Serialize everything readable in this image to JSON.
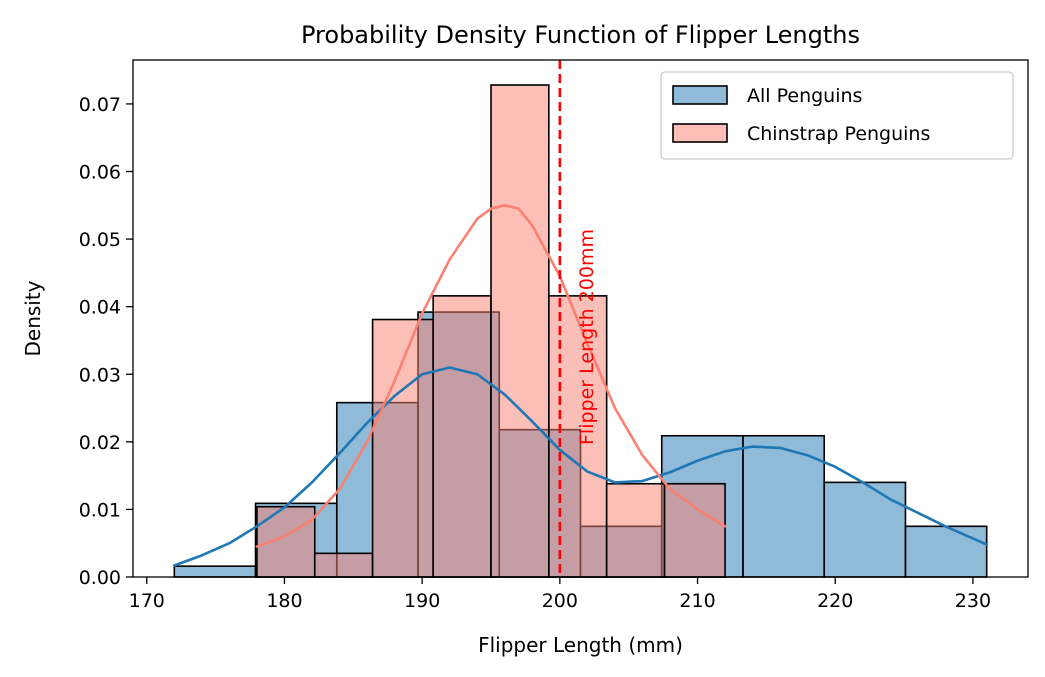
{
  "chart_data": {
    "type": "histogram",
    "title": "Probability Density Function of Flipper Lengths",
    "xlabel": "Flipper Length (mm)",
    "ylabel": "Density",
    "xlim": [
      169,
      234
    ],
    "ylim": [
      0,
      0.0765
    ],
    "xticks": [
      170,
      180,
      190,
      200,
      210,
      220,
      230
    ],
    "yticks": [
      0.0,
      0.01,
      0.02,
      0.03,
      0.04,
      0.05,
      0.06,
      0.07
    ],
    "xtick_labels": [
      "170",
      "180",
      "190",
      "200",
      "210",
      "220",
      "230"
    ],
    "ytick_labels": [
      "0.00",
      "0.01",
      "0.02",
      "0.03",
      "0.04",
      "0.05",
      "0.06",
      "0.07"
    ],
    "grid": false,
    "legend_position": "top-right",
    "series": [
      {
        "name": "All Penguins",
        "fill_color": "#1f77b4",
        "line_color": "#1f77b4",
        "bins": [
          {
            "x0": 172.0,
            "x1": 177.9,
            "density": 0.0016
          },
          {
            "x0": 177.9,
            "x1": 183.8,
            "density": 0.0109
          },
          {
            "x0": 183.8,
            "x1": 189.7,
            "density": 0.0258
          },
          {
            "x0": 189.7,
            "x1": 195.6,
            "density": 0.0392
          },
          {
            "x0": 195.6,
            "x1": 201.5,
            "density": 0.0218
          },
          {
            "x0": 201.5,
            "x1": 207.4,
            "density": 0.0075
          },
          {
            "x0": 207.4,
            "x1": 213.3,
            "density": 0.0209
          },
          {
            "x0": 213.3,
            "x1": 219.2,
            "density": 0.0209
          },
          {
            "x0": 219.2,
            "x1": 225.1,
            "density": 0.014
          },
          {
            "x0": 225.1,
            "x1": 231.0,
            "density": 0.0075
          }
        ],
        "kde": {
          "x": [
            172,
            174,
            176,
            178,
            180,
            182,
            184,
            186,
            188,
            190,
            192,
            194,
            196,
            198,
            200,
            202,
            204,
            206,
            208,
            210,
            212,
            214,
            216,
            218,
            220,
            222,
            224,
            226,
            228,
            231
          ],
          "y": [
            0.0017,
            0.0032,
            0.005,
            0.0075,
            0.0103,
            0.014,
            0.0183,
            0.0228,
            0.0268,
            0.03,
            0.031,
            0.03,
            0.027,
            0.023,
            0.0188,
            0.0156,
            0.014,
            0.0142,
            0.0155,
            0.0172,
            0.0186,
            0.0193,
            0.0191,
            0.018,
            0.0163,
            0.014,
            0.0115,
            0.0095,
            0.0075,
            0.0048
          ]
        }
      },
      {
        "name": "Chinstrap Penguins",
        "fill_color": "#fa8072",
        "line_color": "#fa8072",
        "bins": [
          {
            "x0": 178.0,
            "x1": 182.2,
            "density": 0.0104
          },
          {
            "x0": 182.2,
            "x1": 186.4,
            "density": 0.0035
          },
          {
            "x0": 186.4,
            "x1": 190.8,
            "density": 0.0381
          },
          {
            "x0": 190.8,
            "x1": 195.0,
            "density": 0.0416
          },
          {
            "x0": 195.0,
            "x1": 199.2,
            "density": 0.0728
          },
          {
            "x0": 199.2,
            "x1": 203.4,
            "density": 0.0416
          },
          {
            "x0": 203.4,
            "x1": 207.6,
            "density": 0.0138
          },
          {
            "x0": 207.6,
            "x1": 212.0,
            "density": 0.0138
          }
        ],
        "kde": {
          "x": [
            178,
            180,
            182,
            184,
            186,
            188,
            190,
            192,
            194,
            195,
            196,
            197,
            198,
            200,
            202,
            204,
            206,
            208,
            210,
            212
          ],
          "y": [
            0.0045,
            0.006,
            0.0085,
            0.013,
            0.02,
            0.029,
            0.039,
            0.047,
            0.053,
            0.0545,
            0.055,
            0.0545,
            0.052,
            0.0445,
            0.0345,
            0.025,
            0.018,
            0.013,
            0.01,
            0.0075
          ]
        }
      }
    ],
    "annotations": [
      {
        "type": "vline",
        "x": 200,
        "color": "#ff0000",
        "style": "dashed",
        "label": "Flipper Length 200mm"
      }
    ]
  }
}
